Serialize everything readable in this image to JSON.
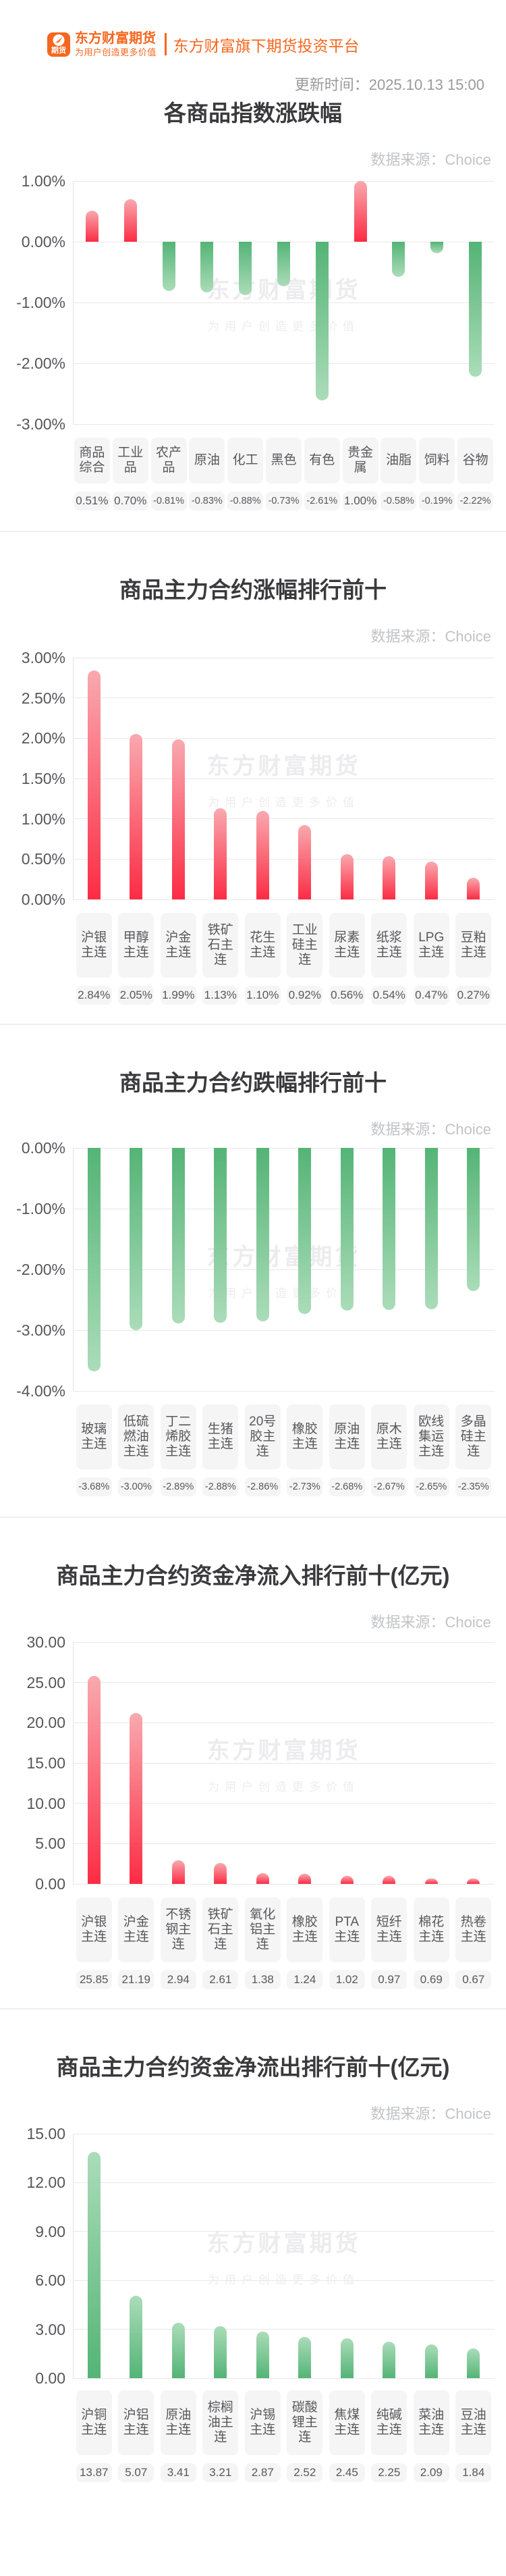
{
  "header": {
    "logo_icon_text": "期货",
    "brand_name": "东方财富期货",
    "brand_slogan": "为用户创造更多价值",
    "tagline": "东方财富旗下期货投资平台",
    "update_time": "更新时间：2025.10.13 15:00"
  },
  "watermark": {
    "line1": "东方财富期货",
    "line2": "为用户创造更多价值"
  },
  "colors": {
    "brand_orange": "#f5671f",
    "bar_red_deep": "#fb2c44",
    "bar_red_light": "#f9a9af",
    "bar_green_deep": "#54b476",
    "bar_green_light": "#abdcb9"
  },
  "chart_data": [
    {
      "id": "index-change",
      "type": "bar",
      "title": "各商品指数涨跌幅",
      "source_label": "数据来源：Choice",
      "ylim": [
        -3,
        1
      ],
      "y_ticks": [
        "1.00%",
        "0.00%",
        "-1.00%",
        "-2.00%",
        "-3.00%"
      ],
      "bar_color": "by-sign",
      "label_lines": 2,
      "bars": [
        {
          "name": "商品综合",
          "label": "商品\n综合",
          "value": 0.51,
          "display": "0.51%"
        },
        {
          "name": "工业品",
          "label": "工业\n品",
          "value": 0.7,
          "display": "0.70%"
        },
        {
          "name": "农产品",
          "label": "农产\n品",
          "value": -0.81,
          "display": "-0.81%"
        },
        {
          "name": "原油",
          "label": "原油",
          "value": -0.83,
          "display": "-0.83%"
        },
        {
          "name": "化工",
          "label": "化工",
          "value": -0.88,
          "display": "-0.88%"
        },
        {
          "name": "黑色",
          "label": "黑色",
          "value": -0.73,
          "display": "-0.73%"
        },
        {
          "name": "有色",
          "label": "有色",
          "value": -2.61,
          "display": "-2.61%"
        },
        {
          "name": "贵金属",
          "label": "贵金\n属",
          "value": 1.0,
          "display": "1.00%"
        },
        {
          "name": "油脂",
          "label": "油脂",
          "value": -0.58,
          "display": "-0.58%"
        },
        {
          "name": "饲料",
          "label": "饲料",
          "value": -0.19,
          "display": "-0.19%"
        },
        {
          "name": "谷物",
          "label": "谷物",
          "value": -2.22,
          "display": "-2.22%"
        }
      ]
    },
    {
      "id": "top-gainers",
      "type": "bar",
      "title": "商品主力合约涨幅排行前十",
      "source_label": "数据来源：Choice",
      "ylim": [
        0,
        3
      ],
      "y_ticks": [
        "3.00%",
        "2.50%",
        "2.00%",
        "1.50%",
        "1.00%",
        "0.50%",
        "0.00%"
      ],
      "bar_color": "red",
      "label_lines": 3,
      "bars": [
        {
          "name": "沪银主连",
          "label": "沪银\n主连",
          "value": 2.84,
          "display": "2.84%"
        },
        {
          "name": "甲醇主连",
          "label": "甲醇\n主连",
          "value": 2.05,
          "display": "2.05%"
        },
        {
          "name": "沪金主连",
          "label": "沪金\n主连",
          "value": 1.99,
          "display": "1.99%"
        },
        {
          "name": "铁矿石主连",
          "label": "铁矿\n石主\n连",
          "value": 1.13,
          "display": "1.13%"
        },
        {
          "name": "花生主连",
          "label": "花生\n主连",
          "value": 1.1,
          "display": "1.10%"
        },
        {
          "name": "工业硅主连",
          "label": "工业\n硅主\n连",
          "value": 0.92,
          "display": "0.92%"
        },
        {
          "name": "尿素主连",
          "label": "尿素\n主连",
          "value": 0.56,
          "display": "0.56%"
        },
        {
          "name": "纸浆主连",
          "label": "纸浆\n主连",
          "value": 0.54,
          "display": "0.54%"
        },
        {
          "name": "LPG主连",
          "label": "LPG\n主连",
          "value": 0.47,
          "display": "0.47%"
        },
        {
          "name": "豆粕主连",
          "label": "豆粕\n主连",
          "value": 0.27,
          "display": "0.27%"
        }
      ]
    },
    {
      "id": "top-losers",
      "type": "bar",
      "title": "商品主力合约跌幅排行前十",
      "source_label": "数据来源：Choice",
      "ylim": [
        -4,
        0
      ],
      "y_ticks": [
        "0.00%",
        "-1.00%",
        "-2.00%",
        "-3.00%",
        "-4.00%"
      ],
      "bar_color": "green",
      "label_lines": 3,
      "bars": [
        {
          "name": "玻璃主连",
          "label": "玻璃\n主连",
          "value": -3.68,
          "display": "-3.68%"
        },
        {
          "name": "低硫燃油主连",
          "label": "低硫\n燃油\n主连",
          "value": -3.0,
          "display": "-3.00%"
        },
        {
          "name": "丁二烯胶主连",
          "label": "丁二\n烯胶\n主连",
          "value": -2.89,
          "display": "-2.89%"
        },
        {
          "name": "生猪主连",
          "label": "生猪\n主连",
          "value": -2.88,
          "display": "-2.88%"
        },
        {
          "name": "20号胶主连",
          "label": "20号\n胶主\n连",
          "value": -2.86,
          "display": "-2.86%"
        },
        {
          "name": "橡胶主连",
          "label": "橡胶\n主连",
          "value": -2.73,
          "display": "-2.73%"
        },
        {
          "name": "原油主连",
          "label": "原油\n主连",
          "value": -2.68,
          "display": "-2.68%"
        },
        {
          "name": "原木主连",
          "label": "原木\n主连",
          "value": -2.67,
          "display": "-2.67%"
        },
        {
          "name": "欧线集运主连",
          "label": "欧线\n集运\n主连",
          "value": -2.65,
          "display": "-2.65%"
        },
        {
          "name": "多晶硅主连",
          "label": "多晶\n硅主\n连",
          "value": -2.35,
          "display": "-2.35%"
        }
      ]
    },
    {
      "id": "net-inflow",
      "type": "bar",
      "title": "商品主力合约资金净流入排行前十(亿元)",
      "source_label": "数据来源：Choice",
      "ylim": [
        0,
        30
      ],
      "y_ticks": [
        "30.00",
        "25.00",
        "20.00",
        "15.00",
        "10.00",
        "5.00",
        "0.00"
      ],
      "bar_color": "red",
      "label_lines": 3,
      "bars": [
        {
          "name": "沪银主连",
          "label": "沪银\n主连",
          "value": 25.85,
          "display": "25.85"
        },
        {
          "name": "沪金主连",
          "label": "沪金\n主连",
          "value": 21.19,
          "display": "21.19"
        },
        {
          "name": "不锈钢主连",
          "label": "不锈\n钢主\n连",
          "value": 2.94,
          "display": "2.94"
        },
        {
          "name": "铁矿石主连",
          "label": "铁矿\n石主\n连",
          "value": 2.61,
          "display": "2.61"
        },
        {
          "name": "氧化铝主连",
          "label": "氧化\n铝主\n连",
          "value": 1.38,
          "display": "1.38"
        },
        {
          "name": "橡胶主连",
          "label": "橡胶\n主连",
          "value": 1.24,
          "display": "1.24"
        },
        {
          "name": "PTA主连",
          "label": "PTA\n主连",
          "value": 1.02,
          "display": "1.02"
        },
        {
          "name": "短纤主连",
          "label": "短纤\n主连",
          "value": 0.97,
          "display": "0.97"
        },
        {
          "name": "棉花主连",
          "label": "棉花\n主连",
          "value": 0.69,
          "display": "0.69"
        },
        {
          "name": "热卷主连",
          "label": "热卷\n主连",
          "value": 0.67,
          "display": "0.67"
        }
      ]
    },
    {
      "id": "net-outflow",
      "type": "bar",
      "title": "商品主力合约资金净流出排行前十(亿元)",
      "source_label": "数据来源：Choice",
      "ylim": [
        0,
        15
      ],
      "y_ticks": [
        "15.00",
        "12.00",
        "9.00",
        "6.00",
        "3.00",
        "0.00"
      ],
      "bar_color": "green",
      "label_lines": 3,
      "bars": [
        {
          "name": "沪铜主连",
          "label": "沪铜\n主连",
          "value": 13.87,
          "display": "13.87"
        },
        {
          "name": "沪铝主连",
          "label": "沪铝\n主连",
          "value": 5.07,
          "display": "5.07"
        },
        {
          "name": "原油主连",
          "label": "原油\n主连",
          "value": 3.41,
          "display": "3.41"
        },
        {
          "name": "棕榈油主连",
          "label": "棕榈\n油主\n连",
          "value": 3.21,
          "display": "3.21"
        },
        {
          "name": "沪锡主连",
          "label": "沪锡\n主连",
          "value": 2.87,
          "display": "2.87"
        },
        {
          "name": "碳酸锂主连",
          "label": "碳酸\n锂主\n连",
          "value": 2.52,
          "display": "2.52"
        },
        {
          "name": "焦煤主连",
          "label": "焦煤\n主连",
          "value": 2.45,
          "display": "2.45"
        },
        {
          "name": "纯碱主连",
          "label": "纯碱\n主连",
          "value": 2.25,
          "display": "2.25"
        },
        {
          "name": "菜油主连",
          "label": "菜油\n主连",
          "value": 2.09,
          "display": "2.09"
        },
        {
          "name": "豆油主连",
          "label": "豆油\n主连",
          "value": 1.84,
          "display": "1.84"
        }
      ]
    }
  ]
}
